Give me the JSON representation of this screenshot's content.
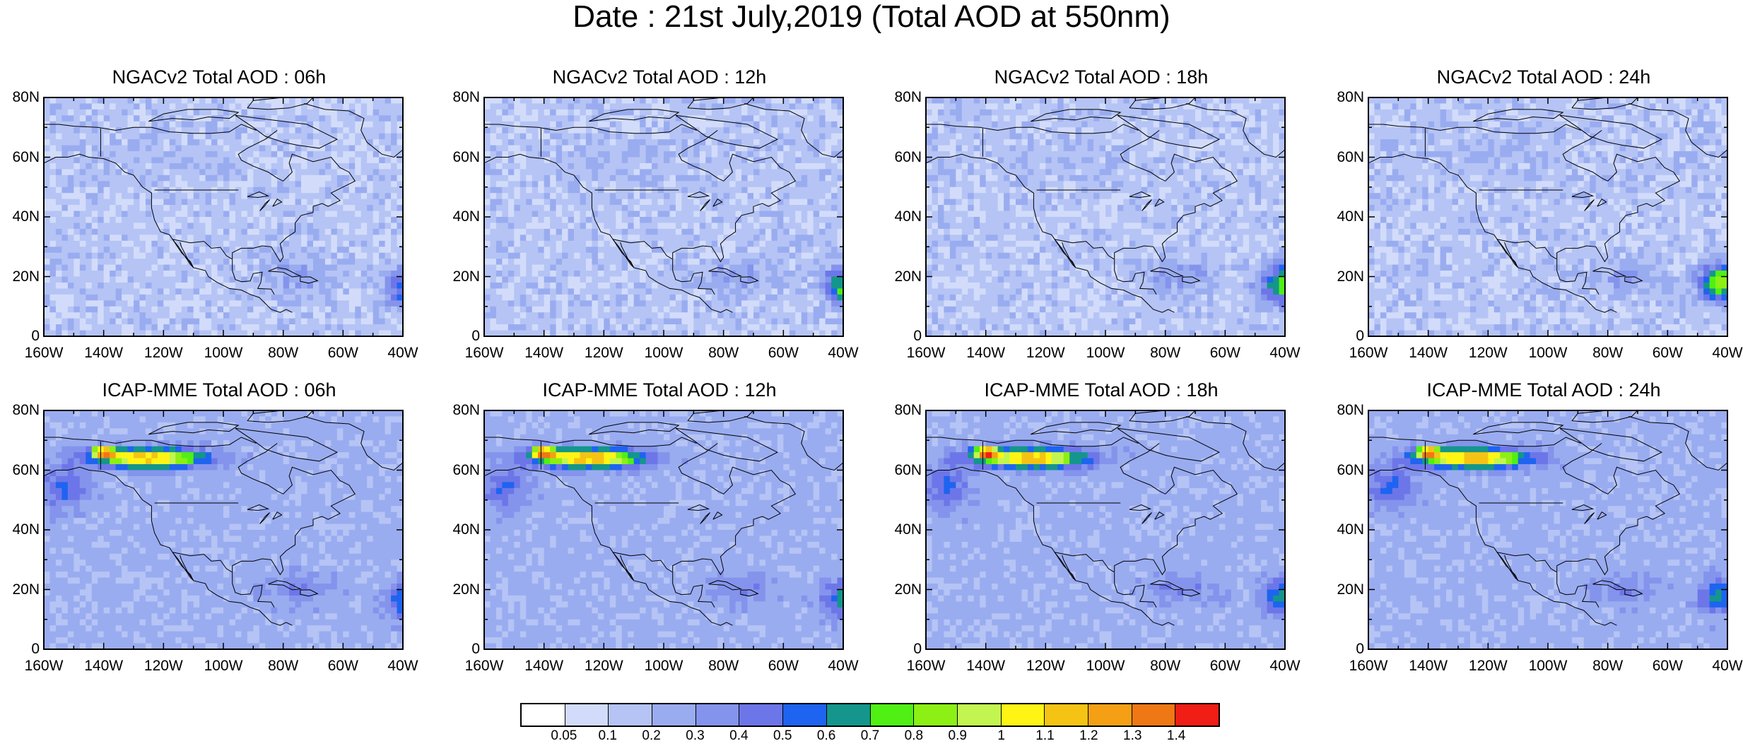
{
  "title": "Date : 21st July,2019 (Total AOD at 550nm)",
  "lat_labels": [
    "80N",
    "60N",
    "40N",
    "20N",
    "0"
  ],
  "lon_labels": [
    "160W",
    "140W",
    "120W",
    "100W",
    "80W",
    "60W",
    "40W"
  ],
  "panels": [
    {
      "title": "NGACv2 Total AOD : 06h",
      "model": "NGACv2",
      "hour": "06h"
    },
    {
      "title": "NGACv2 Total AOD : 12h",
      "model": "NGACv2",
      "hour": "12h"
    },
    {
      "title": "NGACv2 Total AOD : 18h",
      "model": "NGACv2",
      "hour": "18h"
    },
    {
      "title": "NGACv2 Total AOD : 24h",
      "model": "NGACv2",
      "hour": "24h"
    },
    {
      "title": "ICAP-MME Total AOD : 06h",
      "model": "ICAP-MME",
      "hour": "06h"
    },
    {
      "title": "ICAP-MME Total AOD : 12h",
      "model": "ICAP-MME",
      "hour": "12h"
    },
    {
      "title": "ICAP-MME Total AOD : 18h",
      "model": "ICAP-MME",
      "hour": "18h"
    },
    {
      "title": "ICAP-MME Total AOD : 24h",
      "model": "ICAP-MME",
      "hour": "24h"
    }
  ],
  "colorbar": {
    "labels": [
      "0.05",
      "0.1",
      "0.2",
      "0.3",
      "0.4",
      "0.5",
      "0.6",
      "0.7",
      "0.8",
      "0.9",
      "1",
      "1.1",
      "1.2",
      "1.3",
      "1.4"
    ],
    "colors": [
      "#ffffff",
      "#d2dcfa",
      "#b5c4f5",
      "#9aacf0",
      "#8494ec",
      "#6d76e8",
      "#1e64f0",
      "#14968c",
      "#50f014",
      "#8cf014",
      "#c3f550",
      "#fff514",
      "#f5c314",
      "#f5a014",
      "#f07814",
      "#f01e14"
    ]
  }
}
